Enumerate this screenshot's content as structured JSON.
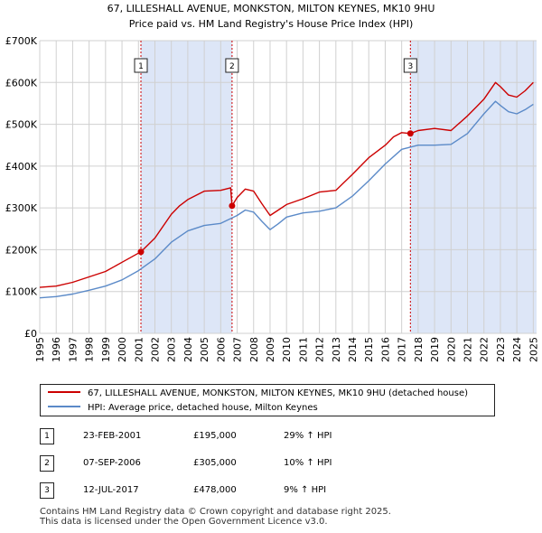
{
  "chart_data": {
    "type": "line",
    "title": "67, LILLESHALL AVENUE, MONKSTON, MILTON KEYNES, MK10 9HU",
    "subtitle": "Price paid vs. HM Land Registry's House Price Index (HPI)",
    "xlabel": "",
    "ylabel": "",
    "xlim": [
      1995,
      2025.2
    ],
    "ylim": [
      0,
      700000
    ],
    "x_ticks": [
      "1995",
      "1996",
      "1997",
      "1998",
      "1999",
      "2000",
      "2001",
      "2002",
      "2003",
      "2004",
      "2005",
      "2006",
      "2007",
      "2008",
      "2009",
      "2010",
      "2011",
      "2012",
      "2013",
      "2014",
      "2015",
      "2016",
      "2017",
      "2018",
      "2019",
      "2020",
      "2021",
      "2022",
      "2023",
      "2024",
      "2025"
    ],
    "y_ticks": [
      {
        "value": 0,
        "label": "£0"
      },
      {
        "value": 100000,
        "label": "£100K"
      },
      {
        "value": 200000,
        "label": "£200K"
      },
      {
        "value": 300000,
        "label": "£300K"
      },
      {
        "value": 400000,
        "label": "£400K"
      },
      {
        "value": 500000,
        "label": "£500K"
      },
      {
        "value": 600000,
        "label": "£600K"
      },
      {
        "value": 700000,
        "label": "£700K"
      }
    ],
    "grid": true,
    "shaded_ranges": [
      [
        2001.15,
        2006.69
      ],
      [
        2017.53,
        2025.2
      ]
    ],
    "series": [
      {
        "name": "67, LILLESHALL AVENUE, MONKSTON, MILTON KEYNES, MK10 9HU (detached house)",
        "color": "#cc0000",
        "x": [
          1995,
          1996,
          1997,
          1998,
          1999,
          2000,
          2001.15,
          2002,
          2003,
          2003.5,
          2004,
          2005,
          2006,
          2006.6,
          2006.69,
          2007,
          2007.5,
          2008,
          2008.5,
          2009,
          2009.5,
          2010,
          2011,
          2012,
          2013,
          2014,
          2015,
          2016,
          2016.5,
          2017,
          2017.53,
          2018,
          2019,
          2020,
          2021,
          2021.5,
          2022,
          2022.7,
          2023,
          2023.5,
          2024,
          2024.5,
          2025
        ],
        "values": [
          110000,
          113000,
          122000,
          135000,
          148000,
          170000,
          195000,
          228000,
          285000,
          305000,
          320000,
          340000,
          342000,
          348000,
          305000,
          325000,
          345000,
          340000,
          310000,
          282000,
          295000,
          308000,
          322000,
          338000,
          342000,
          380000,
          420000,
          450000,
          470000,
          480000,
          478000,
          485000,
          490000,
          485000,
          520000,
          540000,
          560000,
          600000,
          590000,
          570000,
          565000,
          580000,
          600000
        ]
      },
      {
        "name": "HPI: Average price, detached house, Milton Keynes",
        "color": "#5b8ac8",
        "x": [
          1995,
          1996,
          1997,
          1998,
          1999,
          2000,
          2001,
          2002,
          2003,
          2004,
          2005,
          2006,
          2007,
          2007.5,
          2008,
          2008.5,
          2009,
          2009.5,
          2010,
          2011,
          2012,
          2013,
          2014,
          2015,
          2016,
          2017,
          2018,
          2019,
          2020,
          2021,
          2022,
          2022.7,
          2023,
          2023.5,
          2024,
          2024.5,
          2025
        ],
        "values": [
          85000,
          88000,
          94000,
          103000,
          113000,
          128000,
          150000,
          178000,
          218000,
          245000,
          258000,
          263000,
          282000,
          295000,
          290000,
          268000,
          248000,
          262000,
          278000,
          288000,
          292000,
          300000,
          328000,
          365000,
          405000,
          440000,
          450000,
          450000,
          452000,
          478000,
          525000,
          555000,
          545000,
          530000,
          525000,
          535000,
          548000
        ]
      }
    ],
    "markers": [
      {
        "id": "1",
        "x": 2001.15,
        "y": 195000
      },
      {
        "id": "2",
        "x": 2006.69,
        "y": 305000
      },
      {
        "id": "3",
        "x": 2017.53,
        "y": 478000
      }
    ]
  },
  "legend": {
    "property_label": "67, LILLESHALL AVENUE, MONKSTON, MILTON KEYNES, MK10 9HU (detached house)",
    "hpi_label": "HPI: Average price, detached house, Milton Keynes",
    "property_color": "#cc0000",
    "hpi_color": "#5b8ac8"
  },
  "sales": [
    {
      "num": "1",
      "date": "23-FEB-2001",
      "price": "£195,000",
      "hpi": "29% ↑ HPI"
    },
    {
      "num": "2",
      "date": "07-SEP-2006",
      "price": "£305,000",
      "hpi": "10% ↑ HPI"
    },
    {
      "num": "3",
      "date": "12-JUL-2017",
      "price": "£478,000",
      "hpi": "9% ↑ HPI"
    }
  ],
  "footer": {
    "line1": "Contains HM Land Registry data © Crown copyright and database right 2025.",
    "line2": "This data is licensed under the Open Government Licence v3.0."
  }
}
